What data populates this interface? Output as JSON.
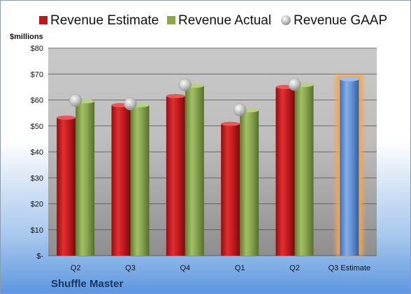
{
  "company": "Shuffle Master",
  "chart_data": {
    "type": "bar",
    "unit_label": "$millions",
    "categories": [
      "Q2",
      "Q3",
      "Q4",
      "Q1",
      "Q2",
      "Q3 Estimate"
    ],
    "ylim": [
      0,
      80
    ],
    "y_ticks": [
      0,
      10,
      20,
      30,
      40,
      50,
      60,
      70,
      80
    ],
    "y_tick_labels": [
      "$-",
      "$10",
      "$20",
      "$30",
      "$40",
      "$50",
      "$60",
      "$70",
      "$80"
    ],
    "grid": true,
    "legend_position": "top",
    "series": [
      {
        "name": "Revenue Estimate",
        "kind": "bar",
        "color": "#c0181e",
        "values": [
          53.2,
          58.0,
          61.5,
          50.8,
          65.0,
          68.0
        ]
      },
      {
        "name": "Revenue Actual",
        "kind": "bar",
        "color": "#8aa64e",
        "values": [
          59.5,
          58.0,
          65.5,
          56.0,
          65.8,
          null
        ]
      },
      {
        "name": "Revenue GAAP",
        "kind": "marker",
        "color": "#b9b9b9",
        "values": [
          59.8,
          58.5,
          65.8,
          56.2,
          66.0,
          null
        ]
      }
    ],
    "highlight": {
      "category_index": 5,
      "color": "#5b8fd6",
      "glow": "#f6a64a"
    }
  }
}
